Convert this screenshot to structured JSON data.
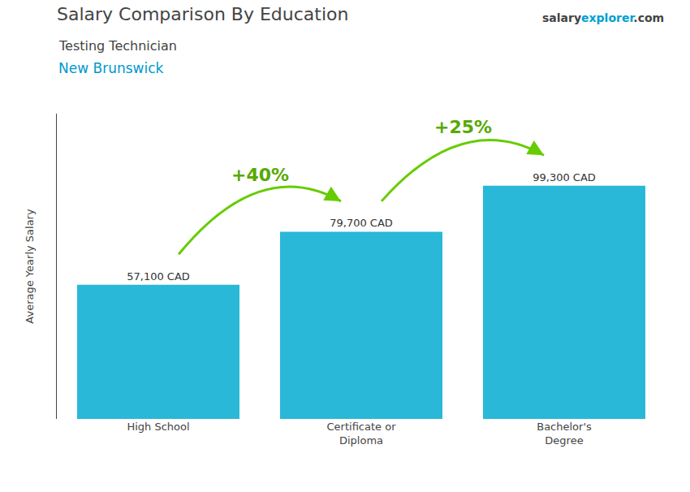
{
  "chart_data": {
    "type": "bar",
    "title": "Salary Comparison By Education",
    "subtitle": [
      "Testing Technician",
      "New Brunswick"
    ],
    "categories": [
      "High School",
      "Certificate or\nDiploma",
      "Bachelor's\nDegree"
    ],
    "values": [
      57100,
      79700,
      99300
    ],
    "value_labels": [
      "57,100 CAD",
      "79,700 CAD",
      "99,300 CAD"
    ],
    "data_labels": true,
    "color": "#29b8d8",
    "ylabel": "Average Yearly Salary",
    "ylim": [
      0,
      130000
    ],
    "tick_labels": "x",
    "grid": false,
    "annotations": [
      {
        "text": "+40%",
        "from": "High School",
        "to": "Certificate or\nDiploma"
      },
      {
        "text": "+25%",
        "from": "Certificate or\nDiploma",
        "to": "Bachelor's\nDegree"
      }
    ],
    "watermark": [
      "salary",
      "explorer",
      ".com"
    ]
  }
}
